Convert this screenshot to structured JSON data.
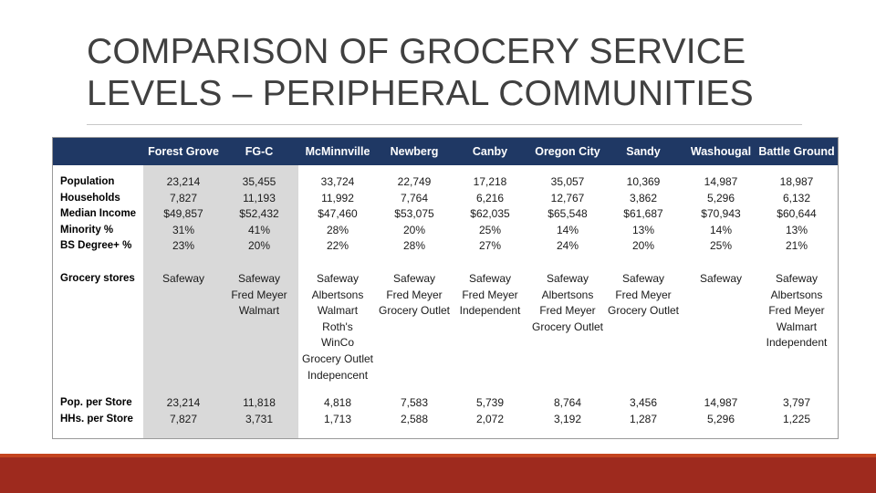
{
  "slide": {
    "title_line1": "COMPARISON OF GROCERY SERVICE",
    "title_line2": "LEVELS – PERIPHERAL COMMUNITIES"
  },
  "table": {
    "columns": [
      "Forest Grove",
      "FG-C",
      "McMinnville",
      "Newberg",
      "Canby",
      "Oregon City",
      "Sandy",
      "Washougal",
      "Battle Ground"
    ],
    "row_labels": {
      "population": "Population",
      "households": "Households",
      "median_income": "Median Income",
      "minority": "Minority %",
      "bs_degree": "BS Degree+ %",
      "grocery_stores": "Grocery stores",
      "pop_per_store": "Pop. per Store",
      "hhs_per_store": "HHs. per Store"
    },
    "population": [
      "23,214",
      "35,455",
      "33,724",
      "22,749",
      "17,218",
      "35,057",
      "10,369",
      "14,987",
      "18,987"
    ],
    "households": [
      "7,827",
      "11,193",
      "11,992",
      "7,764",
      "6,216",
      "12,767",
      "3,862",
      "5,296",
      "6,132"
    ],
    "median_income": [
      "$49,857",
      "$52,432",
      "$47,460",
      "$53,075",
      "$62,035",
      "$65,548",
      "$61,687",
      "$70,943",
      "$60,644"
    ],
    "minority": [
      "31%",
      "41%",
      "28%",
      "20%",
      "25%",
      "14%",
      "13%",
      "14%",
      "13%"
    ],
    "bs_degree": [
      "23%",
      "20%",
      "22%",
      "28%",
      "27%",
      "24%",
      "20%",
      "25%",
      "21%"
    ],
    "grocery_stores": [
      [
        "Safeway"
      ],
      [
        "Safeway",
        "Fred Meyer",
        "Walmart"
      ],
      [
        "Safeway",
        "Albertsons",
        "Walmart",
        "Roth's",
        "WinCo",
        "Grocery Outlet",
        "Indepencent"
      ],
      [
        "Safeway",
        "Fred Meyer",
        "Grocery Outlet"
      ],
      [
        "Safeway",
        "Fred Meyer",
        "Independent"
      ],
      [
        "Safeway",
        "Albertsons",
        "Fred Meyer",
        "Grocery Outlet"
      ],
      [
        "Safeway",
        "Fred Meyer",
        "Grocery Outlet"
      ],
      [
        "Safeway"
      ],
      [
        "Safeway",
        "Albertsons",
        "Fred Meyer",
        "Walmart",
        "Independent"
      ]
    ],
    "pop_per_store": [
      "23,214",
      "11,818",
      "4,818",
      "7,583",
      "5,739",
      "8,764",
      "3,456",
      "14,987",
      "3,797"
    ],
    "hhs_per_store": [
      "7,827",
      "3,731",
      "1,713",
      "2,588",
      "2,072",
      "3,192",
      "1,287",
      "5,296",
      "1,225"
    ]
  },
  "colors": {
    "header_bg": "#1f3864",
    "shaded_columns": "#d9d9d9",
    "bottom_band": "#9e2a1e"
  }
}
